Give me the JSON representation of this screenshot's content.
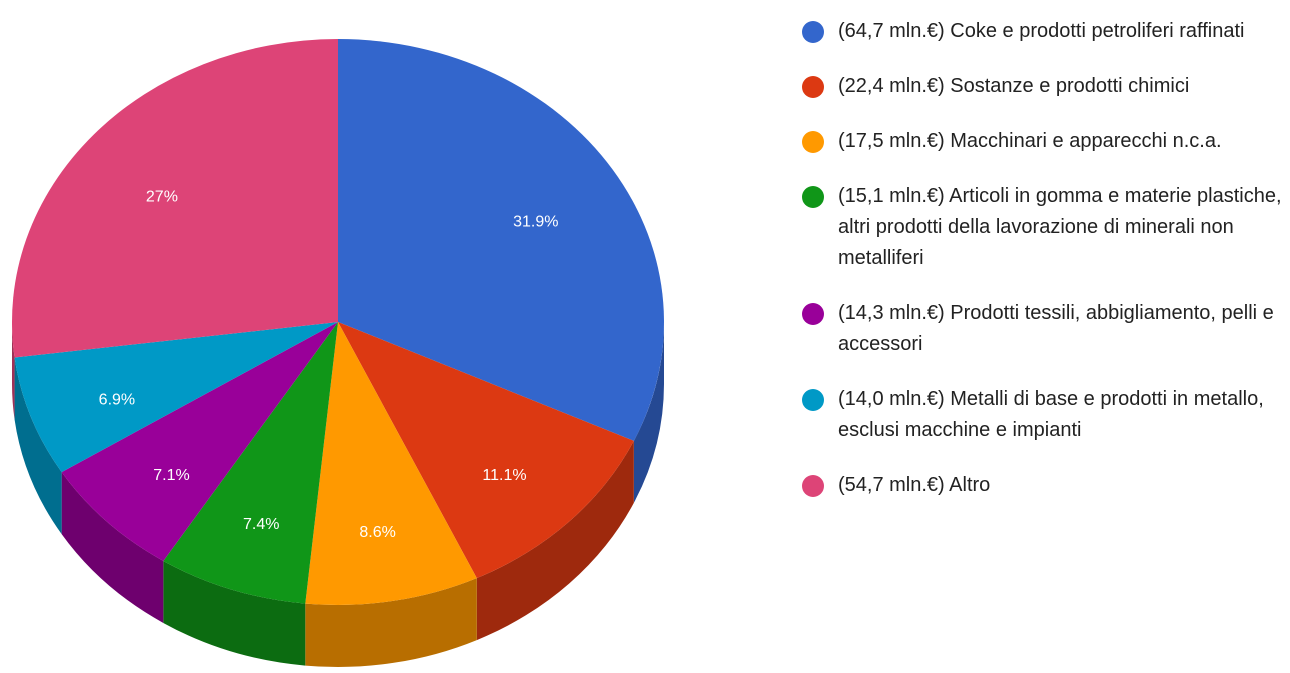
{
  "chart_data": {
    "type": "pie",
    "categories": [
      "(64,7 mln.€) Coke e prodotti petroliferi raffinati",
      "(22,4 mln.€) Sostanze e prodotti chimici",
      "(17,5 mln.€) Macchinari e apparecchi n.c.a.",
      "(15,1 mln.€) Articoli in gomma e materie plastiche, altri prodotti della lavorazione di minerali non metalliferi",
      "(14,3 mln.€) Prodotti tessili, abbigliamento, pelli e accessori",
      "(14,0 mln.€) Metalli di base e prodotti in metallo, esclusi macchine e impianti",
      "(54,7 mln.€) Altro"
    ],
    "values": [
      31.9,
      11.1,
      8.6,
      7.4,
      7.1,
      6.9,
      27
    ],
    "value_labels": [
      "31.9%",
      "11.1%",
      "8.6%",
      "7.4%",
      "7.1%",
      "6.9%",
      "27%"
    ],
    "colors": [
      "#3366cc",
      "#dc3912",
      "#ff9900",
      "#109618",
      "#990099",
      "#0099c6",
      "#dd4477"
    ],
    "legend": "right"
  }
}
